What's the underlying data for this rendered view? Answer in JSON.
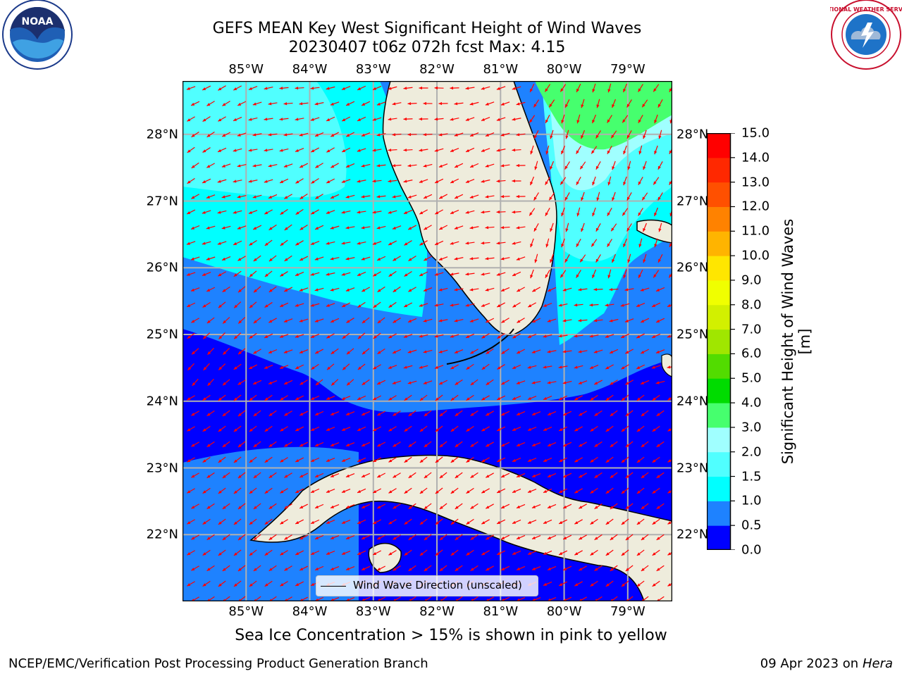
{
  "title": {
    "line1": "GEFS MEAN Key West Significant Height of Wind Waves",
    "line2": "20230407 t06z 072h fcst   Max: 4.15"
  },
  "map": {
    "lon_ticks": [
      "85°W",
      "84°W",
      "83°W",
      "82°W",
      "81°W",
      "80°W",
      "79°W"
    ],
    "lat_ticks": [
      "28°N",
      "27°N",
      "26°N",
      "25°N",
      "24°N",
      "23°N",
      "22°N"
    ],
    "extent": {
      "lon_min": -86.0,
      "lon_max": -78.3,
      "lat_min": 21.0,
      "lat_max": 28.8
    },
    "land_color": "#eeecdc",
    "grid_color": "#b0b0b0",
    "arrow_color": "#ff0000",
    "legend_label": "Wind Wave Direction (unscaled)"
  },
  "colorbar": {
    "label": "Significant Height of Wind Waves [m]",
    "ticks": [
      "0.0",
      "0.5",
      "1.0",
      "1.5",
      "2.0",
      "3.0",
      "4.0",
      "5.0",
      "6.0",
      "7.0",
      "8.0",
      "9.0",
      "10.0",
      "11.0",
      "12.0",
      "13.0",
      "14.0",
      "15.0"
    ],
    "colors": [
      "#0000ff",
      "#1e82ff",
      "#00ffff",
      "#50ffff",
      "#a0ffff",
      "#46ff6e",
      "#00dc00",
      "#52dc00",
      "#a0e600",
      "#d2f000",
      "#f0ff00",
      "#ffe600",
      "#ffb400",
      "#ff8200",
      "#ff5000",
      "#ff2800",
      "#ff0000"
    ]
  },
  "caption": "Sea Ice Concentration > 15% is shown in pink to yellow",
  "footer": {
    "left": "NCEP/EMC/Verification Post Processing Product Generation Branch",
    "right_date": "09 Apr 2023 on ",
    "right_host": "Hera"
  },
  "logos": {
    "noaa": "NOAA",
    "nws": "NATIONAL WEATHER SERVICE"
  },
  "icons": {
    "noaa_logo": "noaa-logo-icon",
    "nws_logo": "nws-logo-icon"
  }
}
